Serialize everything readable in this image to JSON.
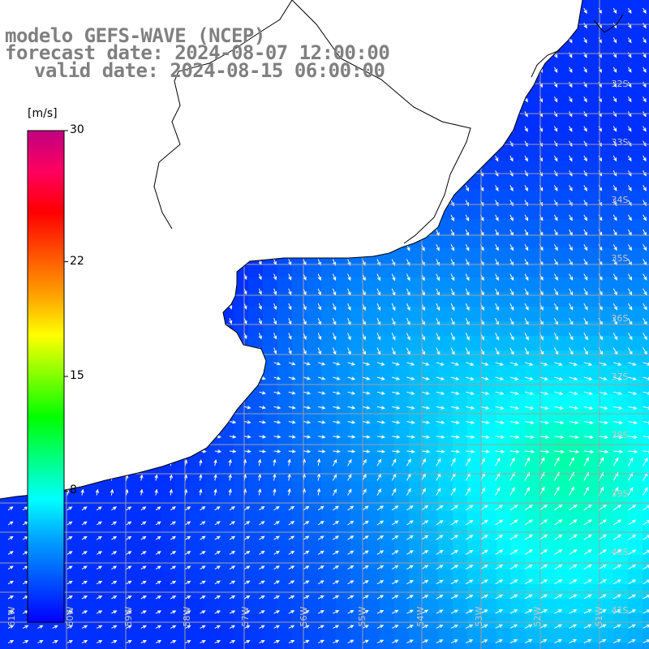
{
  "title": {
    "line1": "modelo GEFS-WAVE (NCEP)",
    "line2": "forecast date: 2024-08-07 12:00:00",
    "line3": "valid date: 2024-08-15 06:00:00"
  },
  "colorbar": {
    "unit": "[m/s]",
    "min": 0,
    "max": 30,
    "labels": [
      {
        "value": 30,
        "text": "30"
      },
      {
        "value": 22,
        "text": "22"
      },
      {
        "value": 15,
        "text": "15"
      },
      {
        "value": 8,
        "text": "8"
      }
    ],
    "colors": [
      "#0000ff",
      "#0050ff",
      "#00a0ff",
      "#00ffff",
      "#00ff80",
      "#00ff00",
      "#80ff00",
      "#ffff00",
      "#ffa000",
      "#ff5000",
      "#ff0000",
      "#ff0060",
      "#c00080"
    ]
  },
  "grid_labels": {
    "latitudes": [
      "32S",
      "33S",
      "34S",
      "35S",
      "36S",
      "37S",
      "38S",
      "39S",
      "40S",
      "41S"
    ],
    "longitudes": [
      "61W",
      "60W",
      "59W",
      "58W",
      "57W",
      "56W",
      "55W",
      "54W",
      "53W",
      "52W",
      "51W"
    ]
  },
  "colors": {
    "land": "#ffffff",
    "coast": "#000000",
    "grid": "#a0a0a0",
    "arrow": "#ffffff",
    "title": "#808080"
  }
}
